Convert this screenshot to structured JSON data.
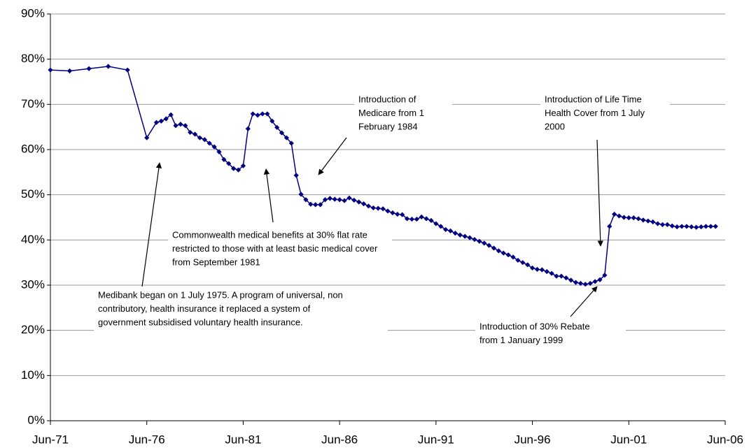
{
  "chart_data": {
    "type": "line",
    "x": [
      1971.5,
      1972.5,
      1973.5,
      1974.5,
      1975.5,
      1976.5,
      1977,
      1977.25,
      1977.5,
      1977.75,
      1978,
      1978.25,
      1978.5,
      1978.75,
      1979,
      1979.25,
      1979.5,
      1979.75,
      1980,
      1980.25,
      1980.5,
      1980.75,
      1981,
      1981.25,
      1981.5,
      1981.75,
      1982,
      1982.25,
      1982.5,
      1982.75,
      1983,
      1983.25,
      1983.5,
      1983.75,
      1984,
      1984.25,
      1984.5,
      1984.75,
      1985,
      1985.25,
      1985.5,
      1985.75,
      1986,
      1986.25,
      1986.5,
      1986.75,
      1987,
      1987.25,
      1987.5,
      1987.75,
      1988,
      1988.25,
      1988.5,
      1988.75,
      1989,
      1989.25,
      1989.5,
      1989.75,
      1990,
      1990.25,
      1990.5,
      1990.75,
      1991,
      1991.25,
      1991.5,
      1991.75,
      1992,
      1992.25,
      1992.5,
      1992.75,
      1993,
      1993.25,
      1993.5,
      1993.75,
      1994,
      1994.25,
      1994.5,
      1994.75,
      1995,
      1995.25,
      1995.5,
      1995.75,
      1996,
      1996.25,
      1996.5,
      1996.75,
      1997,
      1997.25,
      1997.5,
      1997.75,
      1998,
      1998.25,
      1998.5,
      1998.75,
      1999,
      1999.25,
      1999.5,
      1999.75,
      2000,
      2000.25,
      2000.5,
      2000.75,
      2001,
      2001.25,
      2001.5,
      2001.75,
      2002,
      2002.25,
      2002.5,
      2002.75,
      2003,
      2003.25,
      2003.5,
      2003.75,
      2004,
      2004.25,
      2004.5,
      2004.75,
      2005,
      2005.25,
      2005.5,
      2005.75,
      2006
    ],
    "series": [
      {
        "color": "#000080",
        "values": [
          77.6,
          77.4,
          77.9,
          78.4,
          77.6,
          62.6,
          66.0,
          66.3,
          66.8,
          67.7,
          65.3,
          65.6,
          65.3,
          63.8,
          63.4,
          62.6,
          62.2,
          61.4,
          60.6,
          59.5,
          57.8,
          56.9,
          55.8,
          55.5,
          56.4,
          64.6,
          67.9,
          67.6,
          67.9,
          67.9,
          66.3,
          64.9,
          63.7,
          62.6,
          61.4,
          54.3,
          50.1,
          48.9,
          47.9,
          47.8,
          47.8,
          48.9,
          49.2,
          49.0,
          48.9,
          48.7,
          49.3,
          48.8,
          48.4,
          48.0,
          47.5,
          47.1,
          47.0,
          46.9,
          46.4,
          46.0,
          45.7,
          45.6,
          44.7,
          44.6,
          44.6,
          45.1,
          44.7,
          44.3,
          43.6,
          43.0,
          42.3,
          42.0,
          41.5,
          41.1,
          40.8,
          40.5,
          40.1,
          39.7,
          39.3,
          38.8,
          38.2,
          37.6,
          37.1,
          36.7,
          36.2,
          35.5,
          35.0,
          34.5,
          33.8,
          33.5,
          33.4,
          33.0,
          32.6,
          32.0,
          32.0,
          31.6,
          31.1,
          30.6,
          30.4,
          30.2,
          30.4,
          30.8,
          31.2,
          32.2,
          43.0,
          45.7,
          45.3,
          45.0,
          44.9,
          44.9,
          44.7,
          44.4,
          44.2,
          44.0,
          43.6,
          43.4,
          43.4,
          43.1,
          42.9,
          43.0,
          43.0,
          42.9,
          42.8,
          42.9,
          43.0,
          43.0,
          43.0
        ]
      }
    ],
    "xlim": [
      1971.5,
      2006.5
    ],
    "xticks": [
      {
        "value": 1971.5,
        "label": "Jun-71"
      },
      {
        "value": 1976.5,
        "label": "Jun-76"
      },
      {
        "value": 1981.5,
        "label": "Jun-81"
      },
      {
        "value": 1986.5,
        "label": "Jun-86"
      },
      {
        "value": 1991.5,
        "label": "Jun-91"
      },
      {
        "value": 1996.5,
        "label": "Jun-96"
      },
      {
        "value": 2001.5,
        "label": "Jun-01"
      },
      {
        "value": 2006.5,
        "label": "Jun-06"
      }
    ],
    "ylim": [
      0,
      90
    ],
    "yticks": [
      {
        "value": 0,
        "label": "0%"
      },
      {
        "value": 10,
        "label": "10%"
      },
      {
        "value": 20,
        "label": "20%"
      },
      {
        "value": 30,
        "label": "30%"
      },
      {
        "value": 40,
        "label": "40%"
      },
      {
        "value": 50,
        "label": "50%"
      },
      {
        "value": 60,
        "label": "60%"
      },
      {
        "value": 70,
        "label": "70%"
      },
      {
        "value": 80,
        "label": "80%"
      },
      {
        "value": 90,
        "label": "90%"
      }
    ],
    "grid": true,
    "annotations": [
      [
        "Introduction of",
        "Medicare from 1",
        "February 1984"
      ],
      [
        "Introduction of Life Time",
        "Health Cover from 1 July",
        "2000"
      ],
      [
        "Commonwealth medical benefits at 30% flat rate",
        "restricted to those with at least basic medical cover",
        "from September 1981"
      ],
      [
        "Medibank began on 1 July 1975.  A program of universal, non",
        "contributory, health insurance it replaced a system of",
        "government subsidised voluntary health insurance."
      ],
      [
        "Introduction of 30% Rebate",
        "from 1 January 1999"
      ]
    ]
  }
}
